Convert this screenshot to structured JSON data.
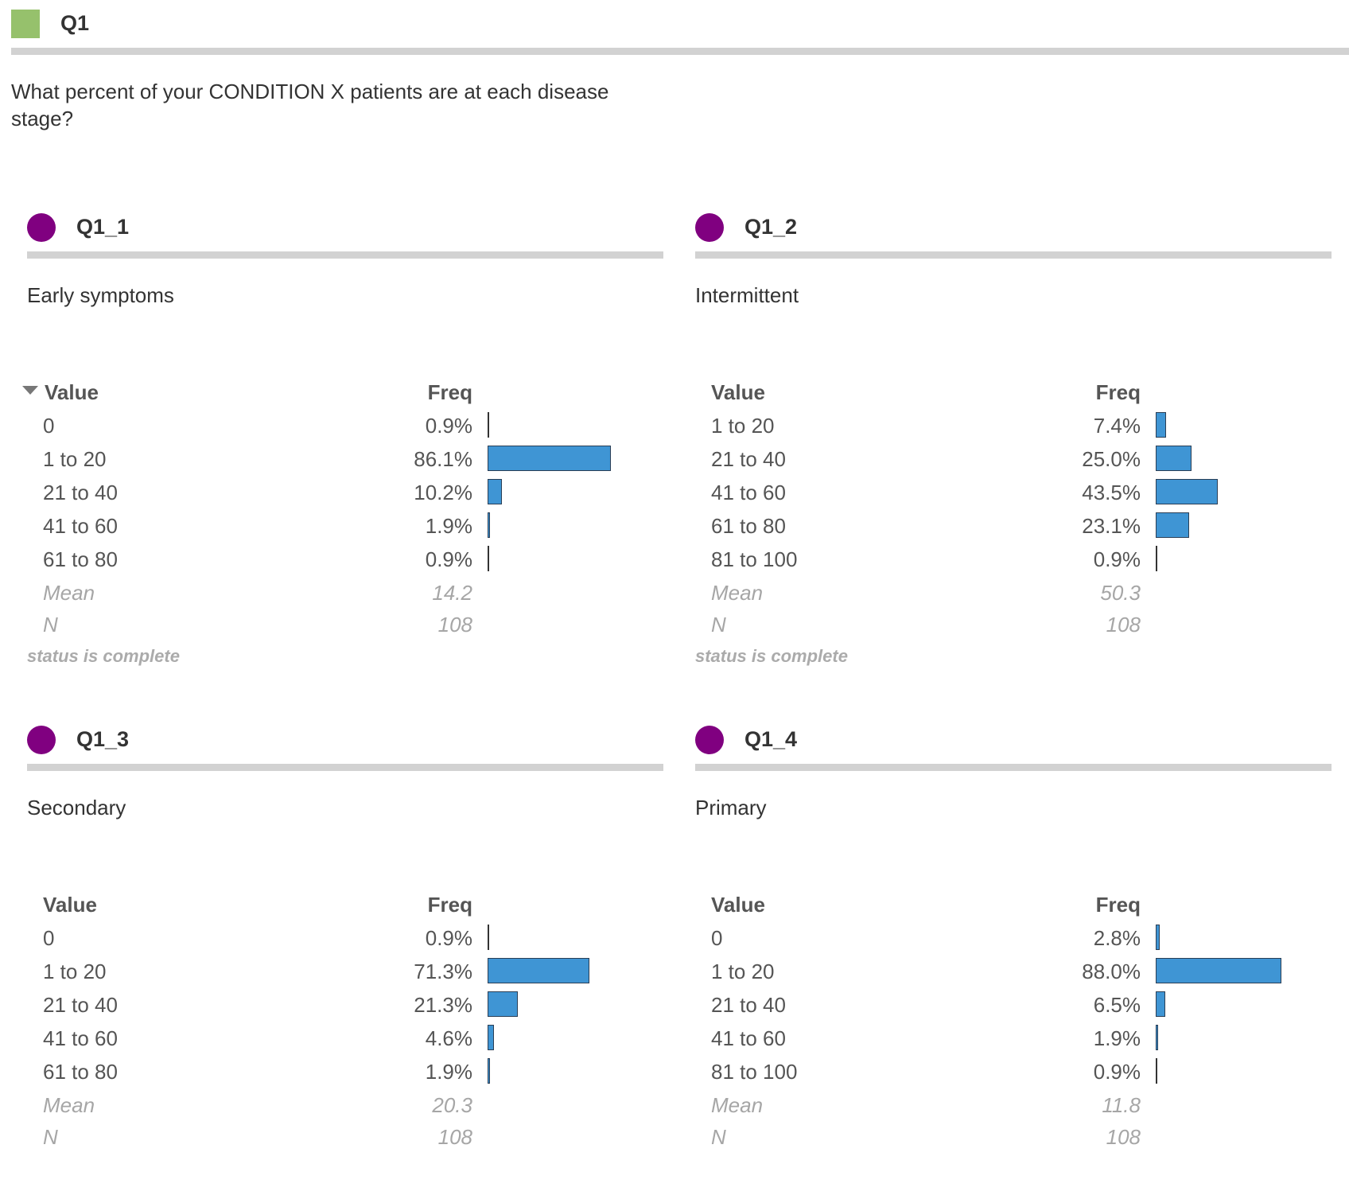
{
  "question": {
    "id": "Q1",
    "text": "What percent of your CONDITION X patients are at each disease stage?",
    "accent_color": "#96c16c"
  },
  "colors": {
    "dot": "#800080",
    "bar": "#3f95d4"
  },
  "table_headers": {
    "value": "Value",
    "freq": "Freq",
    "mean": "Mean",
    "n": "N"
  },
  "chart_data": [
    {
      "type": "bar",
      "id": "Q1_1",
      "subtitle": "Early symptoms",
      "sorted": true,
      "categories": [
        "0",
        "1 to 20",
        "21 to 40",
        "41 to 60",
        "61 to 80"
      ],
      "values": [
        0.9,
        86.1,
        10.2,
        1.9,
        0.9
      ],
      "labels": [
        "0.9%",
        "86.1%",
        "10.2%",
        "1.9%",
        "0.9%"
      ],
      "mean": "14.2",
      "n": "108",
      "status": "status is complete"
    },
    {
      "type": "bar",
      "id": "Q1_2",
      "subtitle": "Intermittent",
      "sorted": false,
      "categories": [
        "1 to 20",
        "21 to 40",
        "41 to 60",
        "61 to 80",
        "81 to 100"
      ],
      "values": [
        7.4,
        25.0,
        43.5,
        23.1,
        0.9
      ],
      "labels": [
        "7.4%",
        "25.0%",
        "43.5%",
        "23.1%",
        "0.9%"
      ],
      "mean": "50.3",
      "n": "108",
      "status": "status is complete"
    },
    {
      "type": "bar",
      "id": "Q1_3",
      "subtitle": "Secondary",
      "sorted": false,
      "categories": [
        "0",
        "1 to 20",
        "21 to 40",
        "41 to 60",
        "61 to 80"
      ],
      "values": [
        0.9,
        71.3,
        21.3,
        4.6,
        1.9
      ],
      "labels": [
        "0.9%",
        "71.3%",
        "21.3%",
        "4.6%",
        "1.9%"
      ],
      "mean": "20.3",
      "n": "108",
      "status": ""
    },
    {
      "type": "bar",
      "id": "Q1_4",
      "subtitle": "Primary",
      "sorted": false,
      "categories": [
        "0",
        "1 to 20",
        "21 to 40",
        "41 to 60",
        "81 to 100"
      ],
      "values": [
        2.8,
        88.0,
        6.5,
        1.9,
        0.9
      ],
      "labels": [
        "2.8%",
        "88.0%",
        "6.5%",
        "1.9%",
        "0.9%"
      ],
      "mean": "11.8",
      "n": "108",
      "status": ""
    }
  ]
}
